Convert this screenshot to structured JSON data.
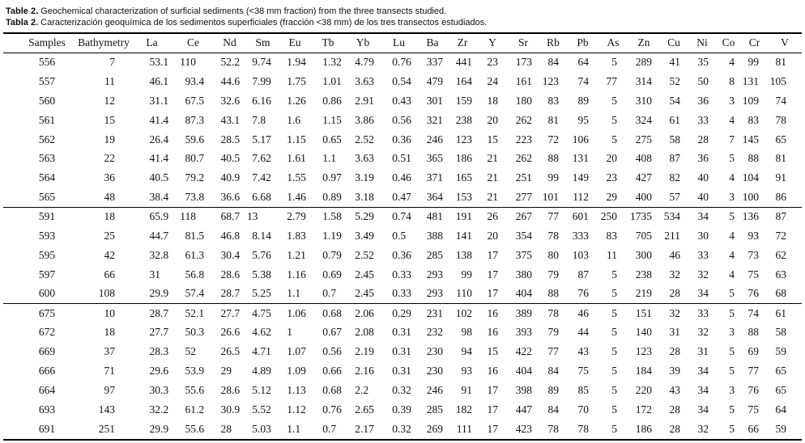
{
  "captions": {
    "en": {
      "prefix": "Table 2.",
      "text": "Geochemical characterization of surficial sediments (<38 mm fraction) from the three transects studied."
    },
    "es": {
      "prefix": "Tabla 2.",
      "text": "Caracterización geoquímica de los sedimentos superficiales (fracción <38 mm) de los tres transectos estudiados."
    }
  },
  "colors": {
    "background": "#ffffff",
    "text": "#121212",
    "rule": "#000000"
  },
  "table": {
    "columns": [
      "Samples",
      "Bathymetry",
      "La",
      "Ce",
      "Nd",
      "Sm",
      "Eu",
      "Tb",
      "Yb",
      "Lu",
      "Ba",
      "Zr",
      "Y",
      "Sr",
      "Rb",
      "Pb",
      "As",
      "Zn",
      "Cu",
      "Ni",
      "Co",
      "Cr",
      "V"
    ],
    "groups": [
      {
        "rows": [
          [
            "556",
            "7",
            "53.1",
            "110",
            "52.2",
            "9.74",
            "1.94",
            "1.32",
            "4.79",
            "0.76",
            "337",
            "441",
            "23",
            "173",
            "84",
            "64",
            "5",
            "289",
            "41",
            "35",
            "4",
            "99",
            "81"
          ],
          [
            "557",
            "11",
            "46.1",
            "93.4",
            "44.6",
            "7.99",
            "1.75",
            "1.01",
            "3.63",
            "0.54",
            "479",
            "164",
            "24",
            "161",
            "123",
            "74",
            "77",
            "314",
            "52",
            "50",
            "8",
            "131",
            "105"
          ],
          [
            "560",
            "12",
            "31.1",
            "67.5",
            "32.6",
            "6.16",
            "1.26",
            "0.86",
            "2.91",
            "0.43",
            "301",
            "159",
            "18",
            "180",
            "83",
            "89",
            "5",
            "310",
            "54",
            "36",
            "3",
            "109",
            "74"
          ],
          [
            "561",
            "15",
            "41.4",
            "87.3",
            "43.1",
            "7.8",
            "1.6",
            "1.15",
            "3.86",
            "0.56",
            "321",
            "238",
            "20",
            "262",
            "81",
            "95",
            "5",
            "324",
            "61",
            "33",
            "4",
            "83",
            "78"
          ],
          [
            "562",
            "19",
            "26.4",
            "59.6",
            "28.5",
            "5.17",
            "1.15",
            "0.65",
            "2.52",
            "0.36",
            "246",
            "123",
            "15",
            "223",
            "72",
            "106",
            "5",
            "275",
            "58",
            "28",
            "7",
            "145",
            "65"
          ],
          [
            "563",
            "22",
            "41.4",
            "80.7",
            "40.5",
            "7.62",
            "1.61",
            "1.1",
            "3.63",
            "0.51",
            "365",
            "186",
            "21",
            "262",
            "88",
            "131",
            "20",
            "408",
            "87",
            "36",
            "5",
            "88",
            "81"
          ],
          [
            "564",
            "36",
            "40.5",
            "79.2",
            "40.9",
            "7.42",
            "1.55",
            "0.97",
            "3.19",
            "0.46",
            "371",
            "165",
            "21",
            "251",
            "99",
            "149",
            "23",
            "427",
            "82",
            "40",
            "4",
            "104",
            "91"
          ],
          [
            "565",
            "48",
            "38.4",
            "73.8",
            "36.6",
            "6.68",
            "1.46",
            "0.89",
            "3.18",
            "0.47",
            "364",
            "153",
            "21",
            "277",
            "101",
            "112",
            "29",
            "400",
            "57",
            "40",
            "3",
            "100",
            "86"
          ]
        ]
      },
      {
        "rows": [
          [
            "591",
            "18",
            "65.9",
            "118",
            "68.7",
            "13",
            "2.79",
            "1.58",
            "5.29",
            "0.74",
            "481",
            "191",
            "26",
            "267",
            "77",
            "601",
            "250",
            "1735",
            "534",
            "34",
            "5",
            "136",
            "87"
          ],
          [
            "593",
            "25",
            "44.7",
            "81.5",
            "46.8",
            "8.14",
            "1.83",
            "1.19",
            "3.49",
            "0.5",
            "388",
            "141",
            "20",
            "354",
            "78",
            "333",
            "83",
            "705",
            "211",
            "30",
            "4",
            "93",
            "72"
          ],
          [
            "595",
            "42",
            "32.8",
            "61.3",
            "30.4",
            "5.76",
            "1.21",
            "0.79",
            "2.52",
            "0.36",
            "285",
            "138",
            "17",
            "375",
            "80",
            "103",
            "11",
            "300",
            "46",
            "33",
            "4",
            "73",
            "62"
          ],
          [
            "597",
            "66",
            "31",
            "56.8",
            "28.6",
            "5.38",
            "1.16",
            "0.69",
            "2.45",
            "0.33",
            "293",
            "99",
            "17",
            "380",
            "79",
            "87",
            "5",
            "238",
            "32",
            "32",
            "4",
            "75",
            "63"
          ],
          [
            "600",
            "108",
            "29.9",
            "57.4",
            "28.7",
            "5.25",
            "1.1",
            "0.7",
            "2.45",
            "0.33",
            "293",
            "110",
            "17",
            "404",
            "88",
            "76",
            "5",
            "219",
            "28",
            "34",
            "5",
            "76",
            "68"
          ]
        ]
      },
      {
        "rows": [
          [
            "675",
            "10",
            "28.7",
            "52.1",
            "27.7",
            "4.75",
            "1.06",
            "0.68",
            "2.06",
            "0.29",
            "231",
            "102",
            "16",
            "389",
            "78",
            "46",
            "5",
            "151",
            "32",
            "33",
            "5",
            "74",
            "61"
          ],
          [
            "672",
            "18",
            "27.7",
            "50.3",
            "26.6",
            "4.62",
            "1",
            "0.67",
            "2.08",
            "0.31",
            "232",
            "98",
            "16",
            "393",
            "79",
            "44",
            "5",
            "140",
            "31",
            "32",
            "3",
            "88",
            "58"
          ],
          [
            "669",
            "37",
            "28.3",
            "52",
            "26.5",
            "4.71",
            "1.07",
            "0.56",
            "2.19",
            "0.31",
            "230",
            "94",
            "15",
            "422",
            "77",
            "43",
            "5",
            "123",
            "28",
            "31",
            "5",
            "69",
            "59"
          ],
          [
            "666",
            "71",
            "29.6",
            "53.9",
            "29",
            "4.89",
            "1.09",
            "0.66",
            "2.16",
            "0.31",
            "230",
            "93",
            "16",
            "404",
            "84",
            "75",
            "5",
            "184",
            "39",
            "34",
            "5",
            "77",
            "65"
          ],
          [
            "664",
            "97",
            "30.3",
            "55.6",
            "28.6",
            "5.12",
            "1.13",
            "0.68",
            "2.2",
            "0.32",
            "246",
            "91",
            "17",
            "398",
            "89",
            "85",
            "5",
            "220",
            "43",
            "34",
            "3",
            "76",
            "65"
          ],
          [
            "693",
            "143",
            "32.2",
            "61.2",
            "30.9",
            "5.52",
            "1.12",
            "0.76",
            "2.65",
            "0.39",
            "285",
            "182",
            "17",
            "447",
            "84",
            "70",
            "5",
            "172",
            "28",
            "34",
            "5",
            "75",
            "64"
          ],
          [
            "691",
            "251",
            "29.9",
            "55.6",
            "28",
            "5.03",
            "1.1",
            "0.7",
            "2.17",
            "0.32",
            "269",
            "111",
            "17",
            "423",
            "78",
            "78",
            "5",
            "186",
            "28",
            "32",
            "5",
            "66",
            "59"
          ]
        ]
      }
    ]
  }
}
